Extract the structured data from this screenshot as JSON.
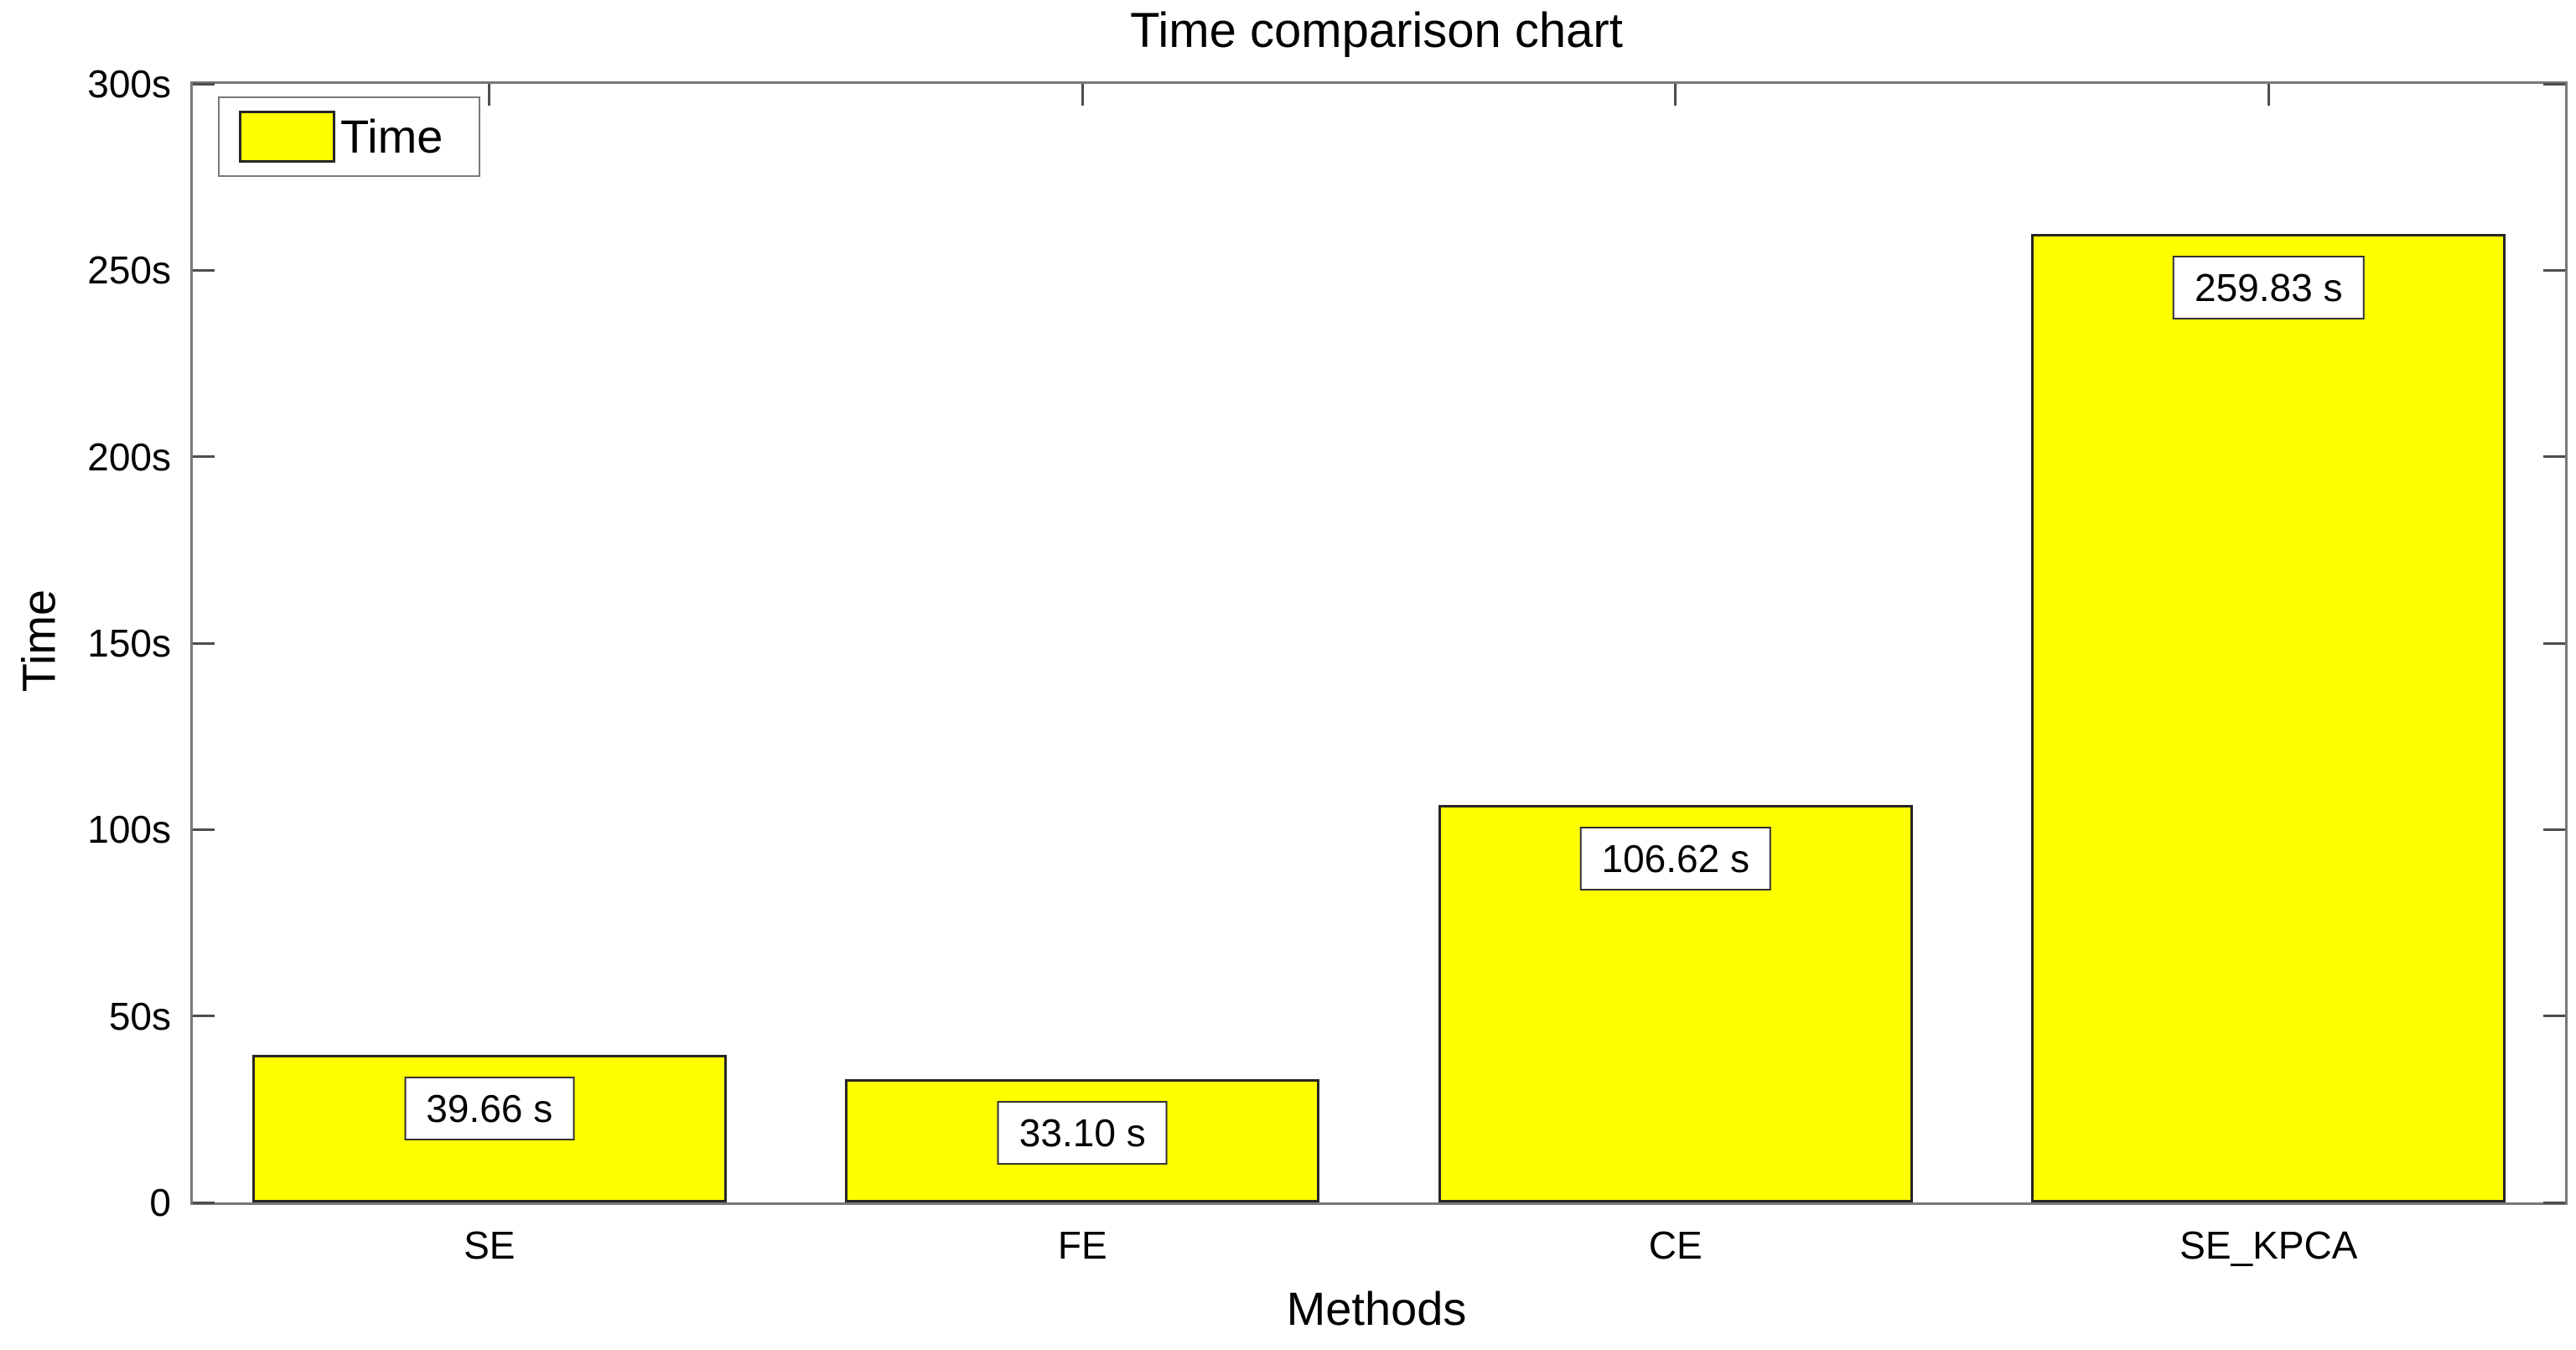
{
  "chart_data": {
    "type": "bar",
    "title": "Time comparison chart",
    "xlabel": "Methods",
    "ylabel": "Time",
    "categories": [
      "SE",
      "FE",
      "CE",
      "SE_KPCA"
    ],
    "values": [
      39.66,
      33.1,
      106.62,
      259.83
    ],
    "bar_labels": [
      "39.66 s",
      "33.10 s",
      "106.62 s",
      "259.83 s"
    ],
    "ylim": [
      0,
      300
    ],
    "yticks": [
      {
        "value": 0,
        "label": "0"
      },
      {
        "value": 50,
        "label": "50s"
      },
      {
        "value": 100,
        "label": "100s"
      },
      {
        "value": 150,
        "label": "150s"
      },
      {
        "value": 200,
        "label": "200s"
      },
      {
        "value": 250,
        "label": "250s"
      },
      {
        "value": 300,
        "label": "300s"
      }
    ],
    "legend": {
      "label": "Time",
      "position": "top-left"
    },
    "grid": false,
    "bar_width_fraction": 0.8,
    "colors": {
      "bar_fill": "#ffff00",
      "bar_edge": "#262626",
      "axis_box": "#787878",
      "tick_mark": "#4d4d4d",
      "text": "#000000",
      "value_box_bg": "#ffffff",
      "value_box_border": "#333333",
      "legend_border": "#7a7a7a"
    }
  }
}
